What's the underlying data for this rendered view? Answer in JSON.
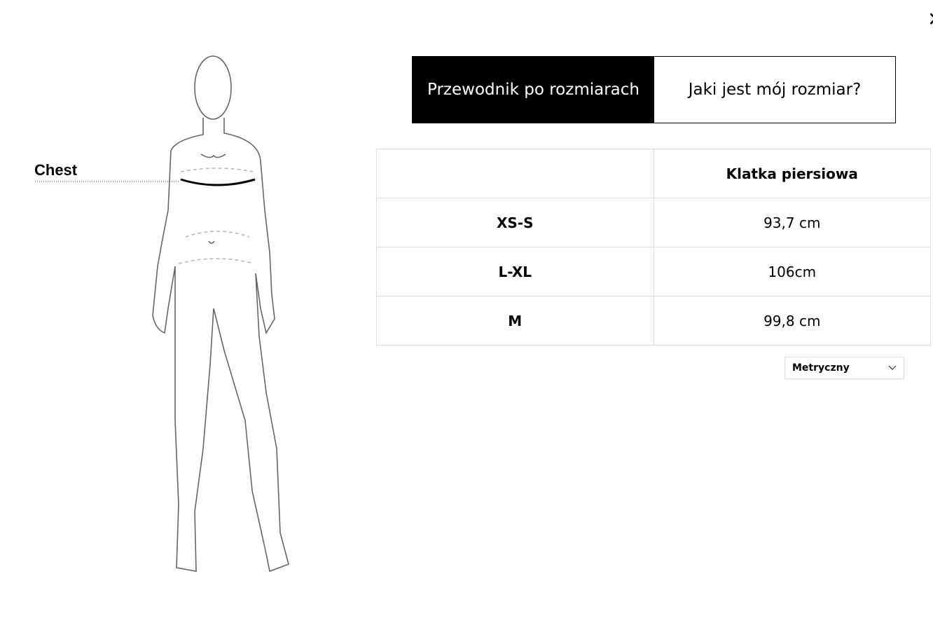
{
  "figure": {
    "measure_label": "Chest"
  },
  "close": {
    "icon": "close-icon"
  },
  "tabs": [
    {
      "label": "Przewodnik po rozmiarach",
      "active": true
    },
    {
      "label": "Jaki jest mój rozmiar?",
      "active": false
    }
  ],
  "table": {
    "headers": [
      "",
      "Klatka piersiowa"
    ],
    "rows": [
      {
        "size": "XS-S",
        "chest": "93,7 cm"
      },
      {
        "size": "L-XL",
        "chest": "106cm"
      },
      {
        "size": "M",
        "chest": "99,8 cm"
      }
    ]
  },
  "unit_select": {
    "value": "Metryczny"
  }
}
